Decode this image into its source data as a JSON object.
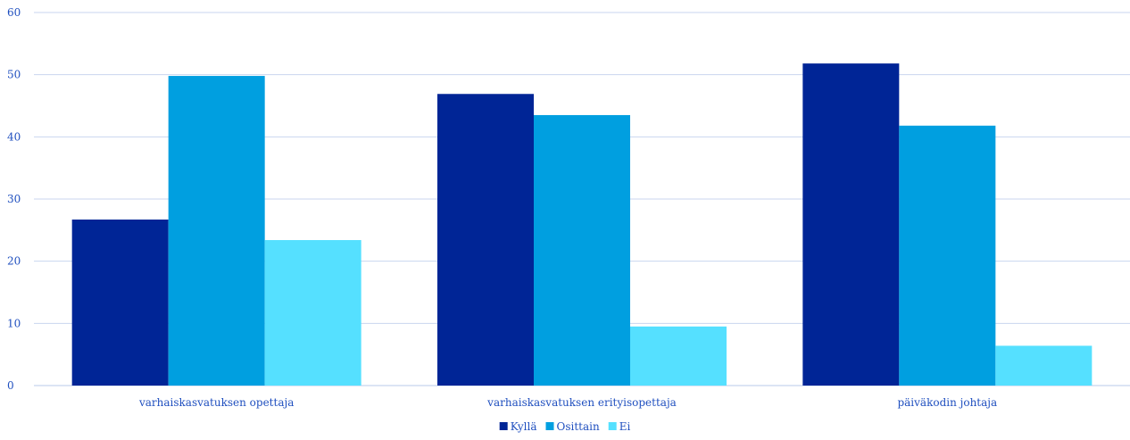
{
  "chart_data": {
    "type": "bar",
    "categories": [
      "varhaiskasvatuksen opettaja",
      "varhaiskasvatuksen erityisopettaja",
      "päiväkodin johtaja"
    ],
    "series": [
      {
        "name": "Kyllä",
        "color": "#002596",
        "values": [
          26.7,
          46.9,
          51.8
        ]
      },
      {
        "name": "Osittain",
        "color": "#009fe0",
        "values": [
          49.8,
          43.5,
          41.8
        ]
      },
      {
        "name": "Ei",
        "color": "#55e0ff",
        "values": [
          23.4,
          9.5,
          6.4
        ]
      }
    ],
    "ylim": [
      0,
      60
    ],
    "yticks": [
      0,
      10,
      20,
      30,
      40,
      50,
      60
    ],
    "grid": true,
    "legend_position": "bottom-center"
  }
}
